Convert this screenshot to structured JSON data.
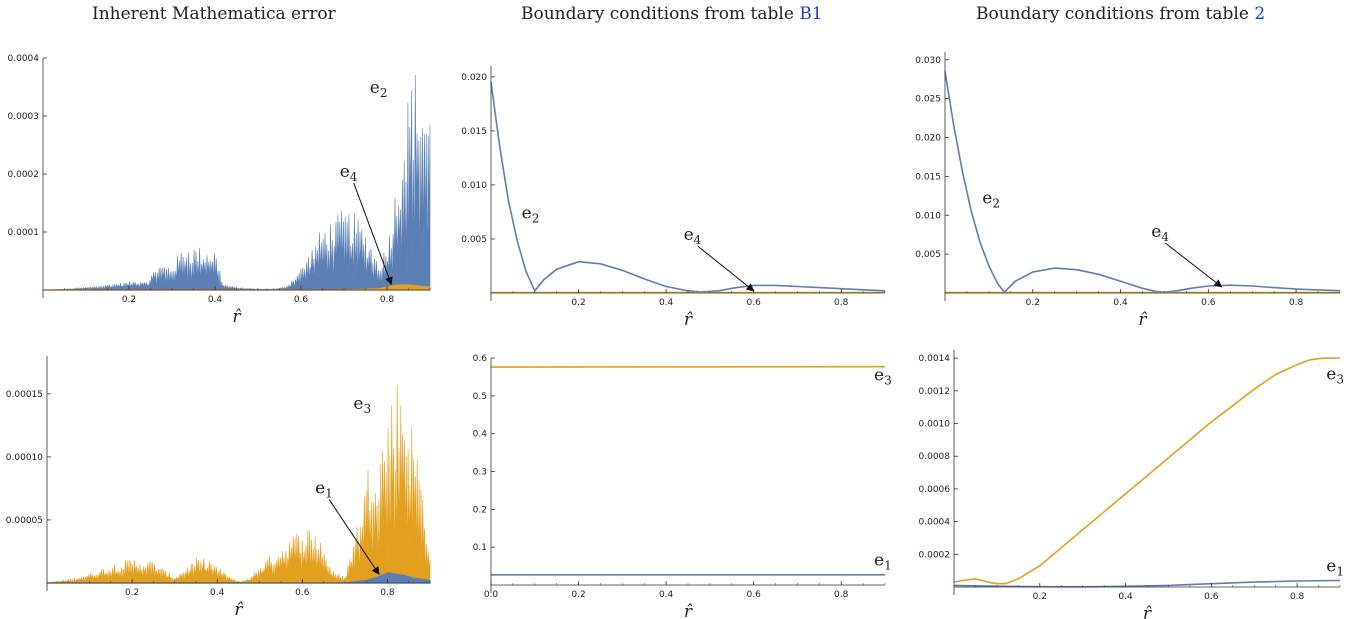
{
  "columns": [
    {
      "title_text": "Inherent Mathematica error",
      "title_ref": ""
    },
    {
      "title_text": "Boundary conditions from table ",
      "title_ref": "B1"
    },
    {
      "title_text": "Boundary conditions from table ",
      "title_ref": "2"
    }
  ],
  "colors": {
    "blue": "#5b7fb5",
    "orange": "#e3a01f",
    "axis": "#333333"
  },
  "chart_data": [
    {
      "id": "p1",
      "type": "area",
      "panel": "top-left",
      "xlabel": "r̂",
      "xlim": [
        0,
        0.9
      ],
      "ylim": [
        0,
        0.0004
      ],
      "xticks": [
        0.2,
        0.4,
        0.6,
        0.8
      ],
      "yticks": [
        0.0001,
        0.0002,
        0.0003,
        0.0004
      ],
      "xtick_labels": [
        "0.2",
        "0.4",
        "0.6",
        "0.8"
      ],
      "ytick_labels": [
        "0.0001",
        "0.0002",
        "0.0003",
        "0.0004"
      ],
      "series": [
        {
          "name": "e2",
          "color": "blue",
          "style": "oscillating",
          "x": [
            0.0,
            0.05,
            0.1,
            0.15,
            0.2,
            0.25,
            0.26,
            0.3,
            0.33,
            0.34,
            0.37,
            0.4,
            0.42,
            0.45,
            0.5,
            0.55,
            0.57,
            0.6,
            0.65,
            0.7,
            0.73,
            0.76,
            0.78,
            0.8,
            0.82,
            0.84,
            0.86,
            0.88,
            0.9
          ],
          "y": [
            0,
            2e-06,
            5e-06,
            1e-05,
            1.5e-05,
            2e-05,
            4.5e-05,
            4.5e-05,
            8e-05,
            7.8e-05,
            7.5e-05,
            7.2e-05,
            1e-05,
            5e-06,
            2e-06,
            3e-06,
            1e-05,
            4e-05,
            0.00011,
            0.00014,
            0.00013,
            9e-05,
            5e-05,
            8e-05,
            0.00018,
            0.0003,
            0.00039,
            0.00037,
            0.00032
          ]
        },
        {
          "name": "e4",
          "color": "orange",
          "style": "smooth",
          "x": [
            0,
            0.7,
            0.78,
            0.8,
            0.82,
            0.84,
            0.86,
            0.88,
            0.9
          ],
          "y": [
            0,
            0,
            2e-06,
            5e-06,
            8e-06,
            9e-06,
            8e-06,
            6e-06,
            5e-06
          ]
        }
      ],
      "annotations": [
        {
          "base": "e",
          "sub": "2",
          "x": 0.76,
          "y": 0.00034
        },
        {
          "base": "e",
          "sub": "4",
          "x": 0.69,
          "y": 0.000195,
          "arrow_to": [
            0.81,
            1e-05
          ]
        }
      ]
    },
    {
      "id": "p2",
      "type": "line",
      "panel": "top-middle",
      "xlabel": "r̂",
      "xlim": [
        0,
        0.9
      ],
      "ylim": [
        0,
        0.021
      ],
      "xticks": [
        0.2,
        0.4,
        0.6,
        0.8
      ],
      "yticks": [
        0.005,
        0.01,
        0.015,
        0.02
      ],
      "xtick_labels": [
        "0.2",
        "0.4",
        "0.6",
        "0.8"
      ],
      "ytick_labels": [
        "0.005",
        "0.010",
        "0.015",
        "0.020"
      ],
      "series": [
        {
          "name": "e2",
          "color": "blue",
          "style": "smooth",
          "x": [
            0,
            0.02,
            0.04,
            0.06,
            0.08,
            0.1,
            0.12,
            0.15,
            0.2,
            0.25,
            0.3,
            0.35,
            0.4,
            0.45,
            0.48,
            0.52,
            0.56,
            0.6,
            0.65,
            0.7,
            0.75,
            0.8,
            0.85,
            0.9
          ],
          "y": [
            0.0195,
            0.0135,
            0.0085,
            0.0048,
            0.002,
            0.0002,
            0.0012,
            0.0022,
            0.0029,
            0.0027,
            0.0021,
            0.0013,
            0.0006,
            0.0002,
            0.0001,
            0.0002,
            0.0005,
            0.0007,
            0.0007,
            0.0006,
            0.0005,
            0.0004,
            0.0003,
            0.0002
          ]
        },
        {
          "name": "e4",
          "color": "orange",
          "style": "smooth",
          "x": [
            0,
            0.9
          ],
          "y": [
            5e-05,
            5e-05
          ]
        }
      ],
      "annotations": [
        {
          "base": "e",
          "sub": "2",
          "x": 0.07,
          "y": 0.0069
        },
        {
          "base": "e",
          "sub": "4",
          "x": 0.44,
          "y": 0.0049,
          "arrow_to": [
            0.6,
            0.0002
          ]
        }
      ]
    },
    {
      "id": "p3",
      "type": "line",
      "panel": "top-right",
      "xlabel": "r̂",
      "xlim": [
        0,
        0.9
      ],
      "ylim": [
        0,
        0.031
      ],
      "xticks": [
        0.2,
        0.4,
        0.6,
        0.8
      ],
      "yticks": [
        0.005,
        0.01,
        0.015,
        0.02,
        0.025,
        0.03
      ],
      "xtick_labels": [
        "0.2",
        "0.4",
        "0.6",
        "0.8"
      ],
      "ytick_labels": [
        "0.005",
        "0.010",
        "0.015",
        "0.020",
        "0.025",
        "0.030"
      ],
      "series": [
        {
          "name": "e2",
          "color": "blue",
          "style": "smooth",
          "x": [
            0,
            0.02,
            0.04,
            0.06,
            0.08,
            0.1,
            0.12,
            0.135,
            0.16,
            0.2,
            0.25,
            0.3,
            0.35,
            0.4,
            0.45,
            0.48,
            0.5,
            0.53,
            0.56,
            0.6,
            0.65,
            0.7,
            0.75,
            0.8,
            0.85,
            0.9
          ],
          "y": [
            0.0285,
            0.0215,
            0.0155,
            0.0105,
            0.0065,
            0.0035,
            0.0012,
            0.0001,
            0.0015,
            0.0027,
            0.0032,
            0.003,
            0.0024,
            0.0015,
            0.0006,
            0.0002,
            0.0001,
            0.0003,
            0.0006,
            0.0009,
            0.001,
            0.0009,
            0.0007,
            0.0005,
            0.0004,
            0.0003
          ]
        },
        {
          "name": "e4",
          "color": "orange",
          "style": "smooth",
          "x": [
            0,
            0.9
          ],
          "y": [
            5e-05,
            5e-05
          ]
        }
      ],
      "annotations": [
        {
          "base": "e",
          "sub": "2",
          "x": 0.085,
          "y": 0.0115
        },
        {
          "base": "e",
          "sub": "4",
          "x": 0.47,
          "y": 0.0072,
          "arrow_to": [
            0.63,
            0.0008
          ]
        }
      ]
    },
    {
      "id": "p4",
      "type": "area",
      "panel": "bottom-left",
      "xlabel": "r̂",
      "xlim": [
        0,
        0.9
      ],
      "ylim": [
        0,
        0.00018
      ],
      "xticks": [
        0.2,
        0.4,
        0.6,
        0.8
      ],
      "yticks": [
        5e-05,
        0.0001,
        0.00015
      ],
      "xtick_labels": [
        "0.2",
        "0.4",
        "0.6",
        "0.8"
      ],
      "ytick_labels": [
        "0.00005",
        "0.00010",
        "0.00015"
      ],
      "series": [
        {
          "name": "e3",
          "color": "orange",
          "style": "oscillating",
          "x": [
            0.0,
            0.05,
            0.1,
            0.15,
            0.2,
            0.25,
            0.28,
            0.3,
            0.35,
            0.38,
            0.42,
            0.45,
            0.48,
            0.5,
            0.55,
            0.58,
            0.61,
            0.64,
            0.67,
            0.7,
            0.73,
            0.76,
            0.79,
            0.81,
            0.83,
            0.85,
            0.87,
            0.89,
            0.9
          ],
          "y": [
            5e-07,
            3e-06,
            8e-06,
            1.5e-05,
            2e-05,
            1.8e-05,
            1e-05,
            5e-06,
            2e-05,
            2e-05,
            8e-06,
            5e-07,
            5e-06,
            1.5e-05,
            3e-05,
            4e-05,
            4.6e-05,
            4e-05,
            1e-05,
            5e-06,
            5e-05,
            0.000105,
            0.00012,
            0.000155,
            0.00017,
            0.00014,
            0.00011,
            6e-05,
            2e-05
          ]
        },
        {
          "name": "e1",
          "color": "blue",
          "style": "smooth",
          "x": [
            0,
            0.7,
            0.75,
            0.78,
            0.8,
            0.82,
            0.84,
            0.86,
            0.88,
            0.9
          ],
          "y": [
            0,
            0,
            2e-06,
            5e-06,
            8e-06,
            7e-06,
            6e-06,
            4e-06,
            3e-06,
            2e-06
          ]
        }
      ],
      "annotations": [
        {
          "base": "e",
          "sub": "3",
          "x": 0.72,
          "y": 0.000138
        },
        {
          "base": "e",
          "sub": "1",
          "x": 0.63,
          "y": 7.1e-05,
          "arrow_to": [
            0.78,
            7e-06
          ]
        }
      ]
    },
    {
      "id": "p5",
      "type": "line",
      "panel": "bottom-middle",
      "xlabel": "r̂",
      "xlim": [
        0,
        0.9
      ],
      "ylim": [
        0,
        0.6
      ],
      "xticks": [
        0.0,
        0.2,
        0.4,
        0.6,
        0.8
      ],
      "yticks": [
        0.1,
        0.2,
        0.3,
        0.4,
        0.5,
        0.6
      ],
      "xtick_labels": [
        "0.0",
        "0.2",
        "0.4",
        "0.6",
        "0.8"
      ],
      "ytick_labels": [
        "0.1",
        "0.2",
        "0.3",
        "0.4",
        "0.5",
        "0.6"
      ],
      "series": [
        {
          "name": "e3",
          "color": "orange",
          "style": "smooth",
          "x": [
            0,
            0.9
          ],
          "y": [
            0.576,
            0.577
          ]
        },
        {
          "name": "e1",
          "color": "blue",
          "style": "smooth",
          "x": [
            0,
            0.9
          ],
          "y": [
            0.027,
            0.027
          ]
        }
      ],
      "annotations": [
        {
          "base": "e",
          "sub": "3",
          "x": 0.875,
          "y": 0.54
        },
        {
          "base": "e",
          "sub": "1",
          "x": 0.875,
          "y": 0.052
        }
      ]
    },
    {
      "id": "p6",
      "type": "line",
      "panel": "bottom-right",
      "xlabel": "r̂",
      "xlim": [
        0,
        0.9
      ],
      "ylim": [
        0,
        0.00145
      ],
      "xticks": [
        0.2,
        0.4,
        0.6,
        0.8
      ],
      "yticks": [
        0.0002,
        0.0004,
        0.0006,
        0.0008,
        0.001,
        0.0012,
        0.0014
      ],
      "xtick_labels": [
        "0.2",
        "0.4",
        "0.6",
        "0.8"
      ],
      "ytick_labels": [
        "0.0002",
        "0.0004",
        "0.0006",
        "0.0008",
        "0.0010",
        "0.0012",
        "0.0014"
      ],
      "series": [
        {
          "name": "e3",
          "color": "orange",
          "style": "smooth",
          "x": [
            0,
            0.02,
            0.05,
            0.08,
            0.1,
            0.12,
            0.15,
            0.2,
            0.25,
            0.3,
            0.35,
            0.4,
            0.45,
            0.5,
            0.55,
            0.6,
            0.65,
            0.7,
            0.75,
            0.8,
            0.83,
            0.86,
            0.9
          ],
          "y": [
            3e-05,
            4e-05,
            5e-05,
            3e-05,
            2e-05,
            2e-05,
            5e-05,
            0.00013,
            0.00024,
            0.00035,
            0.00046,
            0.00057,
            0.00068,
            0.00079,
            0.0009,
            0.00101,
            0.00111,
            0.00121,
            0.0013,
            0.00136,
            0.00139,
            0.0014,
            0.0014
          ]
        },
        {
          "name": "e1",
          "color": "blue",
          "style": "smooth",
          "x": [
            0,
            0.1,
            0.2,
            0.3,
            0.4,
            0.5,
            0.6,
            0.7,
            0.8,
            0.9
          ],
          "y": [
            1e-05,
            5e-06,
            2e-06,
            1e-06,
            4e-06,
            1e-05,
            2e-05,
            3e-05,
            3.7e-05,
            4e-05
          ]
        }
      ],
      "annotations": [
        {
          "base": "e",
          "sub": "3",
          "x": 0.868,
          "y": 0.00127
        },
        {
          "base": "e",
          "sub": "1",
          "x": 0.868,
          "y": 9.5e-05
        }
      ]
    }
  ]
}
